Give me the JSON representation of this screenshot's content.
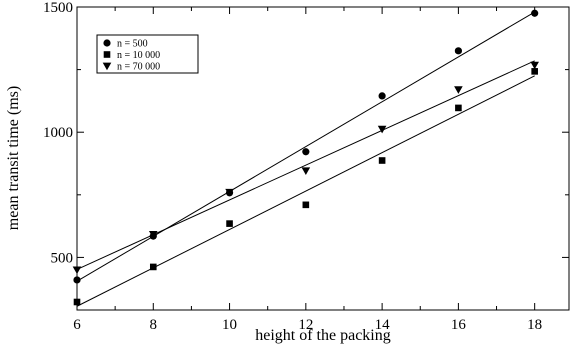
{
  "chart_data": {
    "type": "scatter",
    "title": "",
    "xlabel": "height of the packing",
    "ylabel": "mean transit time (ms)",
    "xlim": [
      6,
      18.9
    ],
    "ylim": [
      290,
      1500
    ],
    "x_ticks": [
      6,
      8,
      10,
      12,
      14,
      16,
      18
    ],
    "y_ticks": [
      500,
      1000,
      1500
    ],
    "grid": false,
    "legend_position": "top-left",
    "series": [
      {
        "name": "n = 500",
        "marker": "circle",
        "x": [
          6,
          8,
          10,
          12,
          14,
          16,
          18
        ],
        "y": [
          410,
          585,
          758,
          922,
          1145,
          1325,
          1475
        ],
        "fit": [
          [
            6,
            405
          ],
          [
            18,
            1480
          ]
        ]
      },
      {
        "name": "n = 10 000",
        "marker": "square",
        "x": [
          6,
          8,
          10,
          12,
          14,
          16,
          18
        ],
        "y": [
          322,
          462,
          635,
          710,
          887,
          1097,
          1243
        ],
        "fit": [
          [
            6,
            305
          ],
          [
            18,
            1225
          ]
        ]
      },
      {
        "name": "n = 70 000",
        "marker": "triangle-down",
        "x": [
          6,
          8,
          10,
          12,
          14,
          16,
          18
        ],
        "y": [
          450,
          592,
          760,
          846,
          1012,
          1170,
          1268
        ],
        "fit": [
          [
            6,
            452
          ],
          [
            18,
            1285
          ]
        ]
      }
    ]
  }
}
